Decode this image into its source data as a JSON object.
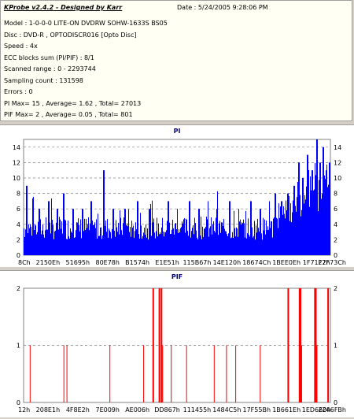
{
  "header": {
    "title_app": "KProbe v2.4.2",
    "title_sep": " - ",
    "title_author": "Designed by Karr",
    "date": "Date : 5/24/2005 9:28:06 PM",
    "lines": [
      "Model : 1-0-0-0 LITE-ON DVDRW SOHW-1633S BS05",
      "Disc : DVD-R , OPTODISCR016 [Opto Disc]",
      "Speed : 4x",
      "ECC blocks sum (PI/PIF) : 8/1",
      "Scanned range : 0 - 2293744",
      "Sampling count : 131598",
      "Errors : 0",
      "PI Max= 15 , Average= 1.62 , Total= 27013",
      "PIF Max= 2 , Average= 0.05 , Total= 801"
    ]
  },
  "colors": {
    "pi_fill": "#0000ff",
    "pif_fill": "#ff0000",
    "grid": "#808080",
    "title": "#000080"
  },
  "chart_data": [
    {
      "type": "area",
      "title": "PI",
      "ylim": [
        0,
        15
      ],
      "yticks": [
        0,
        2,
        4,
        6,
        8,
        10,
        12,
        14
      ],
      "xtick_labels": [
        "8Ch",
        "2150Eh",
        "51695h",
        "80E78h",
        "B1574h",
        "E1E51h",
        "115B67h",
        "14E120h",
        "18674Ch",
        "1BEE0Eh",
        "1F71F7h",
        "22F73Ch"
      ],
      "average": 1.62,
      "max": 15,
      "total": 27013,
      "baseline": 3.5,
      "spikes": [
        {
          "x": 0.01,
          "y": 9
        },
        {
          "x": 0.03,
          "y": 7
        },
        {
          "x": 0.05,
          "y": 6
        },
        {
          "x": 0.08,
          "y": 7
        },
        {
          "x": 0.11,
          "y": 6
        },
        {
          "x": 0.13,
          "y": 8
        },
        {
          "x": 0.16,
          "y": 6
        },
        {
          "x": 0.19,
          "y": 6
        },
        {
          "x": 0.22,
          "y": 7
        },
        {
          "x": 0.26,
          "y": 11
        },
        {
          "x": 0.29,
          "y": 6
        },
        {
          "x": 0.33,
          "y": 6
        },
        {
          "x": 0.37,
          "y": 7
        },
        {
          "x": 0.41,
          "y": 6
        },
        {
          "x": 0.47,
          "y": 7
        },
        {
          "x": 0.5,
          "y": 6
        },
        {
          "x": 0.54,
          "y": 7
        },
        {
          "x": 0.57,
          "y": 6
        },
        {
          "x": 0.6,
          "y": 7
        },
        {
          "x": 0.63,
          "y": 6
        },
        {
          "x": 0.67,
          "y": 7
        },
        {
          "x": 0.7,
          "y": 6
        },
        {
          "x": 0.74,
          "y": 7
        },
        {
          "x": 0.77,
          "y": 6
        },
        {
          "x": 0.8,
          "y": 7
        },
        {
          "x": 0.82,
          "y": 8
        },
        {
          "x": 0.84,
          "y": 7
        },
        {
          "x": 0.86,
          "y": 8
        },
        {
          "x": 0.88,
          "y": 9
        },
        {
          "x": 0.895,
          "y": 12
        },
        {
          "x": 0.91,
          "y": 10
        },
        {
          "x": 0.925,
          "y": 13
        },
        {
          "x": 0.94,
          "y": 11
        },
        {
          "x": 0.955,
          "y": 15
        },
        {
          "x": 0.965,
          "y": 12
        },
        {
          "x": 0.975,
          "y": 14
        },
        {
          "x": 0.985,
          "y": 11
        },
        {
          "x": 0.995,
          "y": 12
        }
      ]
    },
    {
      "type": "bar",
      "title": "PIF",
      "ylim": [
        0,
        2
      ],
      "yticks": [
        0,
        1,
        2
      ],
      "xtick_labels": [
        "12h",
        "208E1h",
        "4F8E2h",
        "7E009h",
        "AE006h",
        "DD867h",
        "111455h",
        "1484C5h",
        "17F55Bh",
        "1B661Eh",
        "1ED660h",
        "2246FBh"
      ],
      "average": 0.05,
      "max": 2,
      "total": 801,
      "bars": [
        {
          "x": 0.02,
          "y": 1
        },
        {
          "x": 0.13,
          "y": 1
        },
        {
          "x": 0.14,
          "y": 1
        },
        {
          "x": 0.28,
          "y": 1
        },
        {
          "x": 0.39,
          "y": 1
        },
        {
          "x": 0.42,
          "y": 2
        },
        {
          "x": 0.44,
          "y": 2
        },
        {
          "x": 0.447,
          "y": 2
        },
        {
          "x": 0.452,
          "y": 1
        },
        {
          "x": 0.48,
          "y": 1
        },
        {
          "x": 0.53,
          "y": 1
        },
        {
          "x": 0.62,
          "y": 1
        },
        {
          "x": 0.66,
          "y": 1
        },
        {
          "x": 0.69,
          "y": 1
        },
        {
          "x": 0.77,
          "y": 1
        },
        {
          "x": 0.86,
          "y": 2
        },
        {
          "x": 0.862,
          "y": 1
        },
        {
          "x": 0.897,
          "y": 2
        },
        {
          "x": 0.9,
          "y": 2
        },
        {
          "x": 0.905,
          "y": 1
        },
        {
          "x": 0.947,
          "y": 2
        },
        {
          "x": 0.95,
          "y": 2
        },
        {
          "x": 0.955,
          "y": 1
        },
        {
          "x": 0.99,
          "y": 2
        }
      ]
    }
  ]
}
